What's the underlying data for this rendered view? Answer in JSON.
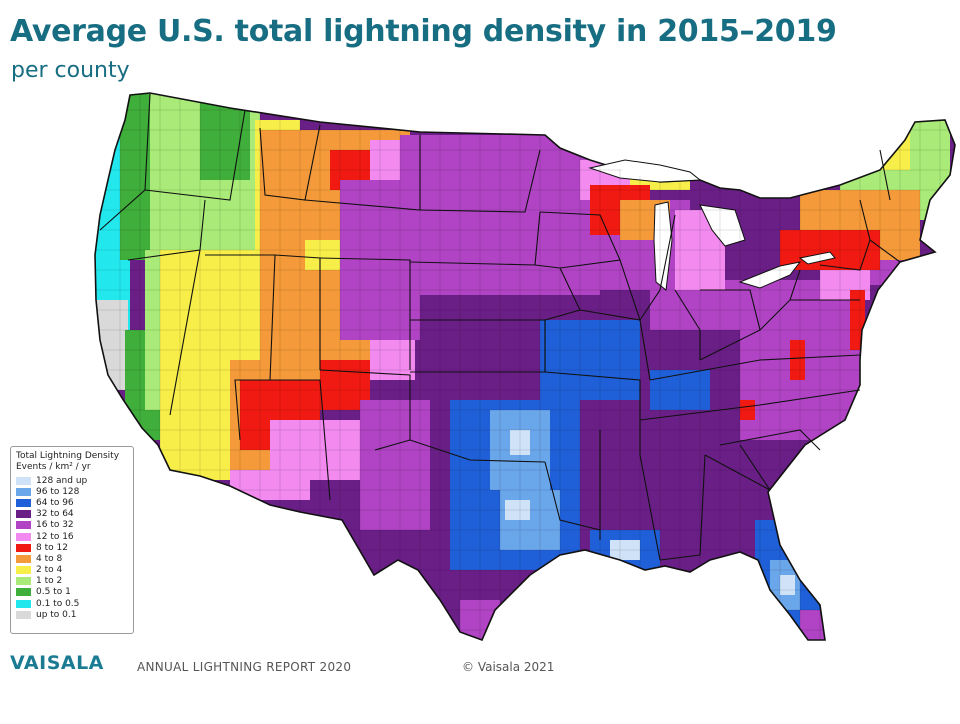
{
  "header": {
    "title": "Average U.S. total lightning density in 2015–2019",
    "subtitle": "per county"
  },
  "legend": {
    "title": "Total Lightning Density",
    "units": "Events / km² / yr",
    "items": [
      {
        "label": "128 and up",
        "color": "#cfe2f7"
      },
      {
        "label": "96 to 128",
        "color": "#6aa6ea"
      },
      {
        "label": "64 to 96",
        "color": "#1f5fd8"
      },
      {
        "label": "32 to 64",
        "color": "#6a1f86"
      },
      {
        "label": "16 to 32",
        "color": "#b044c4"
      },
      {
        "label": "12 to 16",
        "color": "#f28af0"
      },
      {
        "label": "8 to 12",
        "color": "#f01a12"
      },
      {
        "label": "4 to 8",
        "color": "#f59a3a"
      },
      {
        "label": "2 to 4",
        "color": "#f7ee4a"
      },
      {
        "label": "1 to 2",
        "color": "#a9ea78"
      },
      {
        "label": "0.5 to 1",
        "color": "#3fae3a"
      },
      {
        "label": "0.1 to 0.5",
        "color": "#22e8ee"
      },
      {
        "label": "up to 0.1",
        "color": "#d9d9d9"
      }
    ]
  },
  "footer": {
    "brand": "VAISALA",
    "report": "ANNUAL LIGHTNING REPORT 2020",
    "copyright": "© Vaisala 2021"
  }
}
